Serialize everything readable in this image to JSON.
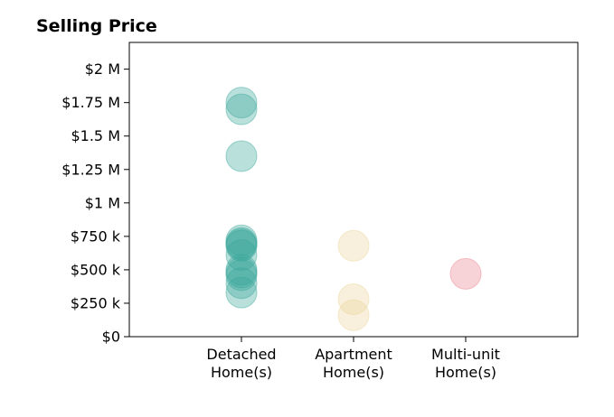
{
  "chart_data": {
    "type": "scatter",
    "title": "Selling Price",
    "xlabel": "",
    "ylabel": "",
    "categories": [
      [
        "Detached",
        "Home(s)"
      ],
      [
        "Apartment",
        "Home(s)"
      ],
      [
        "Multi-unit",
        "Home(s)"
      ]
    ],
    "ylim": [
      0,
      2200000
    ],
    "y_ticks": [
      {
        "value": 0,
        "label": "$0"
      },
      {
        "value": 250000,
        "label": "$250 k"
      },
      {
        "value": 500000,
        "label": "$500 k"
      },
      {
        "value": 750000,
        "label": "$750 k"
      },
      {
        "value": 1000000,
        "label": "$1 M"
      },
      {
        "value": 1250000,
        "label": "$1.25 M"
      },
      {
        "value": 1500000,
        "label": "$1.5 M"
      },
      {
        "value": 1750000,
        "label": "$1.75 M"
      },
      {
        "value": 2000000,
        "label": "$2 M"
      }
    ],
    "grid": false,
    "series": [
      {
        "category_index": 0,
        "color": "#3aa69a",
        "values": [
          1750000,
          1700000,
          1350000,
          720000,
          700000,
          690000,
          680000,
          610000,
          500000,
          480000,
          460000,
          400000,
          330000
        ]
      },
      {
        "category_index": 1,
        "color": "#ecd49a",
        "values": [
          680000,
          280000,
          160000
        ]
      },
      {
        "category_index": 2,
        "color": "#e8828c",
        "values": [
          470000
        ]
      }
    ]
  }
}
